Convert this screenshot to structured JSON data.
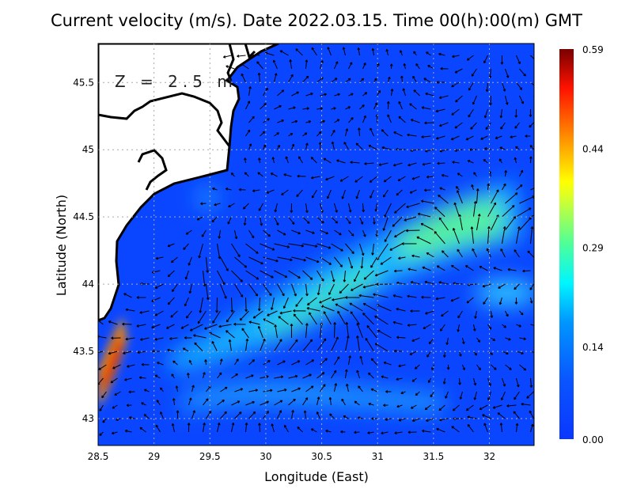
{
  "title": "Current velocity (m/s). Date 2022.03.15. Time 00(h):00(m) GMT",
  "depth_label": "Z = 2.5 m",
  "chart_data": {
    "type": "heatmap",
    "title": "Current velocity (m/s). Date 2022.03.15. Time 00(h):00(m) GMT",
    "xlabel": "Longitude (East)",
    "ylabel": "Latitude (North)",
    "xlim": [
      28.5,
      32.4
    ],
    "ylim": [
      42.8,
      45.79
    ],
    "xticks": [
      "28.5",
      "29",
      "29.5",
      "30",
      "30.5",
      "31",
      "31.5",
      "32"
    ],
    "yticks": [
      "43",
      "43.5",
      "44",
      "44.5",
      "45",
      "45.5"
    ],
    "grid": true,
    "colorbar": {
      "min": 0.0,
      "max": 0.59,
      "ticks": [
        "0.00",
        "0.14",
        "0.29",
        "0.44",
        "0.59"
      ],
      "units": "m/s",
      "placement": "right"
    },
    "annotation": "Z = 2.5 m",
    "features": [
      {
        "name": "coastal jet",
        "lon": 28.65,
        "lat": 43.45,
        "speed": 0.55
      },
      {
        "name": "offshore band",
        "lon": 31.6,
        "lat": 44.45,
        "speed": 0.32
      },
      {
        "name": "central band",
        "lon": 30.2,
        "lat": 43.8,
        "speed": 0.27
      }
    ]
  },
  "colors": {
    "ocean": "#0a3cff",
    "land": "#ffffff",
    "coast": "#000000"
  }
}
